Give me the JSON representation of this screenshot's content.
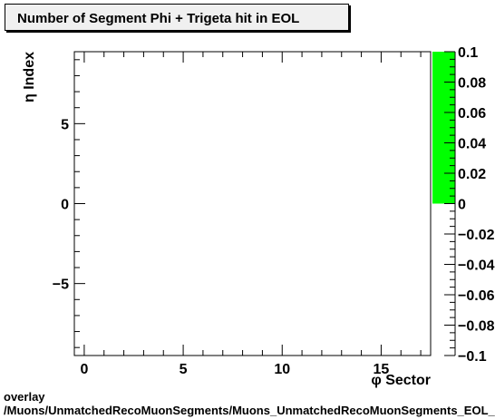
{
  "chart_data": {
    "type": "heatmap",
    "title": "Number of Segment Phi + Trigeta hit in EOL",
    "xlabel": "φ Sector",
    "ylabel": "η Index",
    "xlim": [
      -0.5,
      17.5
    ],
    "ylim": [
      -9.5,
      9.5
    ],
    "x_ticks": [
      0,
      5,
      10,
      15
    ],
    "y_ticks": [
      -5,
      0,
      5
    ],
    "z_range": [
      -0.1,
      0.1
    ],
    "z_ticks": [
      -0.1,
      -0.08,
      -0.06,
      -0.04,
      -0.02,
      0,
      0.02,
      0.04,
      0.06,
      0.08,
      0.1
    ],
    "z_tick_labels": [
      "−0.1",
      "−0.08",
      "−0.06",
      "−0.04",
      "−0.02",
      "0",
      "0.02",
      "0.04",
      "0.06",
      "0.08",
      "0.1"
    ],
    "colorbar_fill_range": [
      0,
      0.1
    ],
    "colorbar_color": "#00ff00",
    "values": []
  },
  "footer": {
    "line1": "overlay",
    "line2": "/Muons/UnmatchedRecoMuonSegments/Muons_UnmatchedRecoMuonSegments_EOL_"
  }
}
